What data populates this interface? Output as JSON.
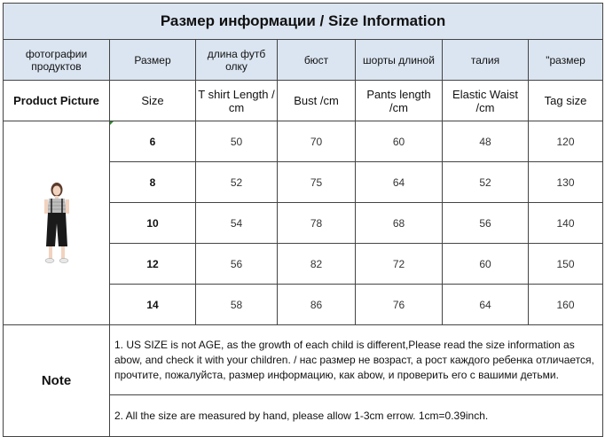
{
  "title": "Размер информации / Size Information",
  "headers_ru": [
    "фотографии продуктов",
    "Размер",
    "длина футб олку",
    "бюст",
    "шорты длиной",
    "талия",
    "\"размер"
  ],
  "headers_en": [
    "Product Picture",
    "Size",
    "T shirt Length / cm",
    "Bust  /cm",
    "Pants  length /cm",
    "Elastic Waist /cm",
    "Tag size"
  ],
  "rows": [
    {
      "size": "6",
      "tshirt": "50",
      "bust": "70",
      "pants": "60",
      "waist": "48",
      "tag": "120"
    },
    {
      "size": "8",
      "tshirt": "52",
      "bust": "75",
      "pants": "64",
      "waist": "52",
      "tag": "130"
    },
    {
      "size": "10",
      "tshirt": "54",
      "bust": "78",
      "pants": "68",
      "waist": "56",
      "tag": "140"
    },
    {
      "size": "12",
      "tshirt": "56",
      "bust": "82",
      "pants": "72",
      "waist": "60",
      "tag": "150"
    },
    {
      "size": "14",
      "tshirt": "58",
      "bust": "86",
      "pants": "76",
      "waist": "64",
      "tag": "160"
    }
  ],
  "note": {
    "label": "Note",
    "line1": "1. US SIZE is not AGE, as the growth of each child is different,Please read the size information as abow,   and check it with your children.  /   нас размер не возраст, а рост каждого ребенка отличается, прочтите, пожалуйста, размер информацию, как abow, и проверить его с вашими детьми.",
    "line2": "2. All the size are measured by hand, please allow 1-3cm errow. 1cm=0.39inch."
  },
  "colors": {
    "header_bg": "#dbe5f1",
    "border": "#444444",
    "corner_mark": "#2e8b2e"
  },
  "icons": {
    "product": "product-photo-girl"
  }
}
